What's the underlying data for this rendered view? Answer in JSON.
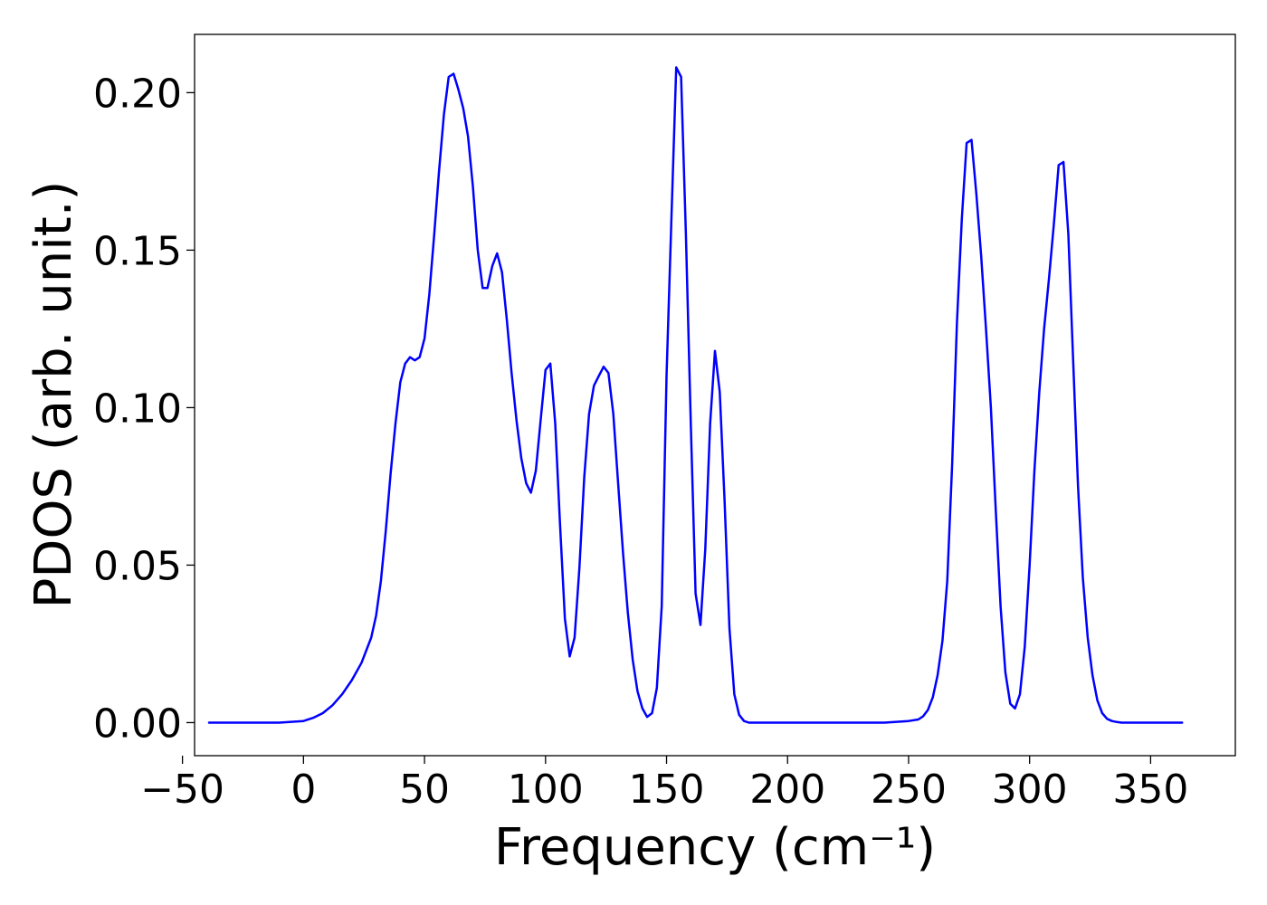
{
  "chart_data": {
    "type": "line",
    "title": "",
    "xlabel": "Frequency (cm⁻¹)",
    "ylabel": "PDOS (arb. unit.)",
    "xlim": [
      -45,
      385
    ],
    "ylim": [
      -0.0105,
      0.2185
    ],
    "x_ticks": [
      {
        "value": -50,
        "label": "−50"
      },
      {
        "value": 0,
        "label": "0"
      },
      {
        "value": 50,
        "label": "50"
      },
      {
        "value": 100,
        "label": "100"
      },
      {
        "value": 150,
        "label": "150"
      },
      {
        "value": 200,
        "label": "200"
      },
      {
        "value": 250,
        "label": "250"
      },
      {
        "value": 300,
        "label": "300"
      },
      {
        "value": 350,
        "label": "350"
      }
    ],
    "y_ticks": [
      {
        "value": 0.0,
        "label": "0.00"
      },
      {
        "value": 0.05,
        "label": "0.05"
      },
      {
        "value": 0.1,
        "label": "0.10"
      },
      {
        "value": 0.15,
        "label": "0.15"
      },
      {
        "value": 0.2,
        "label": "0.20"
      }
    ],
    "grid": false,
    "legend": "none",
    "series": [
      {
        "color": "#0000ff",
        "x": [
          -39,
          -30,
          -20,
          -10,
          0,
          4,
          8,
          12,
          16,
          20,
          24,
          28,
          30,
          32,
          34,
          36,
          38,
          40,
          42,
          44,
          46,
          48,
          50,
          52,
          54,
          56,
          58,
          60,
          62,
          64,
          66,
          68,
          70,
          72,
          74,
          76,
          78,
          80,
          82,
          84,
          86,
          88,
          90,
          92,
          94,
          96,
          98,
          100,
          102,
          104,
          106,
          108,
          110,
          112,
          114,
          116,
          118,
          120,
          122,
          124,
          126,
          128,
          130,
          132,
          134,
          136,
          138,
          140,
          142,
          144,
          146,
          148,
          150,
          152,
          154,
          156,
          158,
          160,
          162,
          164,
          166,
          168,
          170,
          172,
          174,
          176,
          178,
          180,
          182,
          184,
          186,
          190,
          200,
          220,
          240,
          250,
          254,
          256,
          258,
          260,
          262,
          264,
          266,
          268,
          270,
          272,
          274,
          276,
          278,
          280,
          282,
          284,
          286,
          288,
          290,
          292,
          294,
          296,
          298,
          300,
          302,
          304,
          306,
          308,
          310,
          312,
          314,
          316,
          318,
          320,
          322,
          324,
          326,
          328,
          330,
          332,
          334,
          336,
          338,
          340,
          350,
          363
        ],
        "y": [
          0.0,
          0.0,
          0.0,
          0.0,
          0.0005,
          0.0015,
          0.003,
          0.0055,
          0.009,
          0.0135,
          0.019,
          0.027,
          0.034,
          0.045,
          0.061,
          0.079,
          0.095,
          0.108,
          0.114,
          0.116,
          0.115,
          0.116,
          0.122,
          0.136,
          0.155,
          0.175,
          0.193,
          0.205,
          0.206,
          0.201,
          0.195,
          0.186,
          0.17,
          0.15,
          0.138,
          0.138,
          0.145,
          0.149,
          0.143,
          0.128,
          0.111,
          0.096,
          0.084,
          0.076,
          0.073,
          0.08,
          0.096,
          0.112,
          0.114,
          0.095,
          0.063,
          0.033,
          0.021,
          0.027,
          0.049,
          0.078,
          0.098,
          0.107,
          0.11,
          0.113,
          0.111,
          0.098,
          0.076,
          0.054,
          0.035,
          0.02,
          0.01,
          0.0045,
          0.0018,
          0.003,
          0.011,
          0.037,
          0.11,
          0.16,
          0.208,
          0.205,
          0.155,
          0.095,
          0.041,
          0.031,
          0.055,
          0.095,
          0.118,
          0.105,
          0.07,
          0.03,
          0.009,
          0.0025,
          0.0005,
          0.0,
          0.0,
          0.0,
          0.0,
          0.0,
          0.0,
          0.0005,
          0.001,
          0.002,
          0.004,
          0.008,
          0.015,
          0.026,
          0.045,
          0.082,
          0.127,
          0.16,
          0.184,
          0.185,
          0.168,
          0.148,
          0.125,
          0.1,
          0.068,
          0.037,
          0.016,
          0.006,
          0.0045,
          0.009,
          0.024,
          0.05,
          0.08,
          0.105,
          0.125,
          0.141,
          0.158,
          0.177,
          0.178,
          0.155,
          0.115,
          0.075,
          0.046,
          0.027,
          0.015,
          0.007,
          0.003,
          0.0012,
          0.0005,
          0.0002,
          0.0,
          0.0,
          0.0,
          0.0
        ]
      }
    ]
  }
}
